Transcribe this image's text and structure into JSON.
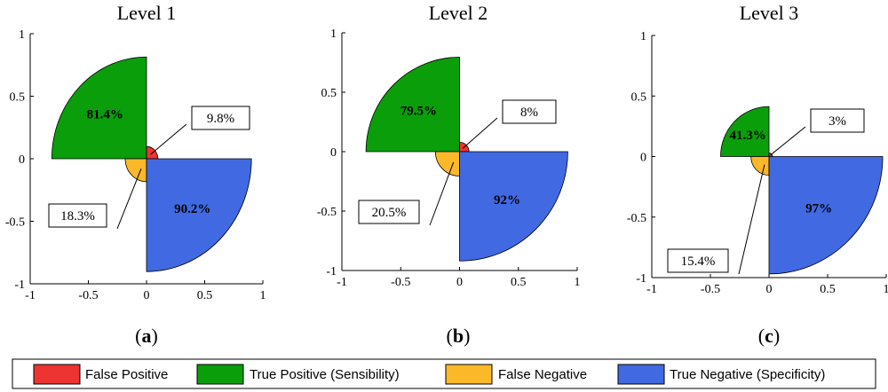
{
  "chart_data": [
    {
      "type": "polar-area",
      "title": "Level 1",
      "caption": "a",
      "quadrants": {
        "true_positive": 81.4,
        "false_positive": 9.8,
        "false_negative": 18.3,
        "true_negative": 90.2
      },
      "labels": {
        "true_positive": "81.4%",
        "false_positive": "9.8%",
        "false_negative": "18.3%",
        "true_negative": "90.2%"
      },
      "xlim": [
        -1,
        1
      ],
      "ylim": [
        -1,
        1
      ],
      "xticks": [
        "-1",
        "-0.5",
        "0",
        "0.5",
        "1"
      ],
      "yticks": [
        "1",
        "0.5",
        "0",
        "-0.5",
        "-1"
      ]
    },
    {
      "type": "polar-area",
      "title": "Level 2",
      "caption": "b",
      "quadrants": {
        "true_positive": 79.5,
        "false_positive": 8,
        "false_negative": 20.5,
        "true_negative": 92
      },
      "labels": {
        "true_positive": "79.5%",
        "false_positive": "8%",
        "false_negative": "20.5%",
        "true_negative": "92%"
      },
      "xlim": [
        -1,
        1
      ],
      "ylim": [
        -1,
        1
      ],
      "xticks": [
        "-1",
        "-0.5",
        "0",
        "0.5",
        "1"
      ],
      "yticks": [
        "1",
        "0.5",
        "0",
        "-0.5",
        "-1"
      ]
    },
    {
      "type": "polar-area",
      "title": "Level 3",
      "caption": "c",
      "quadrants": {
        "true_positive": 41.3,
        "false_positive": 3,
        "false_negative": 15.4,
        "true_negative": 97
      },
      "labels": {
        "true_positive": "41.3%",
        "false_positive": "3%",
        "false_negative": "15.4%",
        "true_negative": "97%"
      },
      "xlim": [
        -1,
        1
      ],
      "ylim": [
        -1,
        1
      ],
      "xticks": [
        "-1",
        "-0.5",
        "0",
        "0.5",
        "1"
      ],
      "yticks": [
        "1",
        "0.5",
        "0",
        "-0.5",
        "-1"
      ]
    }
  ],
  "legend": [
    {
      "key": "false_positive",
      "label": "False Positive",
      "color": "#ee3333"
    },
    {
      "key": "true_positive",
      "label": "True Positive (Sensibility)",
      "color": "#0a9e0a"
    },
    {
      "key": "false_negative",
      "label": "False Negative",
      "color": "#fbb829"
    },
    {
      "key": "true_negative",
      "label": "True Negative (Specificity)",
      "color": "#4169e1"
    }
  ]
}
